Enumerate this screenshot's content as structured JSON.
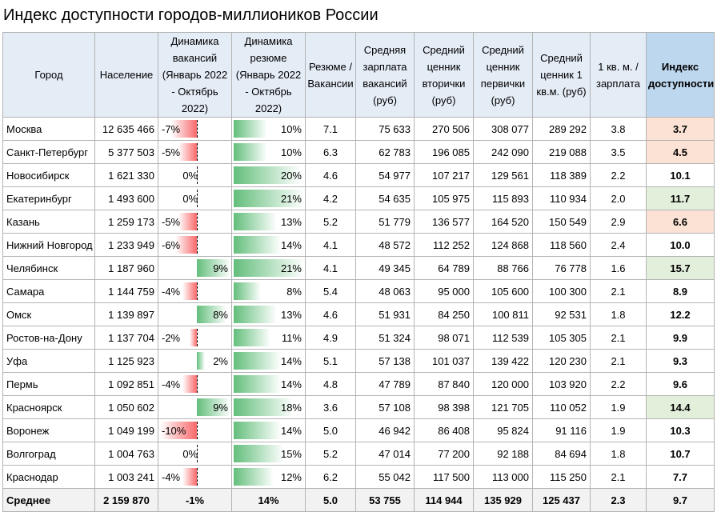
{
  "title": "Индекс доступности городов-миллиоников России",
  "headers": [
    "Город",
    "Население",
    "Динамика вакансий (Январь 2022 - Октябрь 2022)",
    "Динамика резюме (Январь 2022 - Октябрь 2022)",
    "Резюме / Вакансии",
    "Средняя зарплата вакансий (руб)",
    "Средний ценник вторички (руб)",
    "Средний ценник первички (руб)",
    "Средний ценник 1 кв.м. (руб)",
    "1 кв. м. / зарплата",
    "Индекс доступности"
  ],
  "colors": {
    "index_low": "#fbe2d5",
    "index_high": "#e2efda",
    "neg_bar": "#f8696b",
    "pos_bar": "#63be7b"
  },
  "rows": [
    {
      "city": "Москва",
      "population": "12 635 466",
      "vac": -7,
      "vac_text": "-7%",
      "res": 10,
      "res_text": "10%",
      "ratio": "7.1",
      "salary": "75 633",
      "secondary": "270 506",
      "primary": "308 077",
      "sqm": "289 292",
      "sqm_salary": "3.8",
      "index": "3.7",
      "tone": "low"
    },
    {
      "city": "Санкт-Петербург",
      "population": "5 377 503",
      "vac": -5,
      "vac_text": "-5%",
      "res": 10,
      "res_text": "10%",
      "ratio": "6.3",
      "salary": "62 783",
      "secondary": "196 085",
      "primary": "242 090",
      "sqm": "219 088",
      "sqm_salary": "3.5",
      "index": "4.5",
      "tone": "low"
    },
    {
      "city": "Новосибирск",
      "population": "1 621 330",
      "vac": 0,
      "vac_text": "0%",
      "res": 20,
      "res_text": "20%",
      "ratio": "4.6",
      "salary": "54 977",
      "secondary": "107 217",
      "primary": "129 561",
      "sqm": "118 389",
      "sqm_salary": "2.2",
      "index": "10.1",
      "tone": ""
    },
    {
      "city": "Екатеринбург",
      "population": "1 493 600",
      "vac": 0,
      "vac_text": "0%",
      "res": 21,
      "res_text": "21%",
      "ratio": "4.2",
      "salary": "54 635",
      "secondary": "105 975",
      "primary": "115 893",
      "sqm": "110 934",
      "sqm_salary": "2.0",
      "index": "11.7",
      "tone": "high"
    },
    {
      "city": "Казань",
      "population": "1 259 173",
      "vac": -5,
      "vac_text": "-5%",
      "res": 13,
      "res_text": "13%",
      "ratio": "5.2",
      "salary": "51 779",
      "secondary": "136 577",
      "primary": "164 520",
      "sqm": "150 549",
      "sqm_salary": "2.9",
      "index": "6.6",
      "tone": "low"
    },
    {
      "city": "Нижний Новгород",
      "population": "1 233 949",
      "vac": -6,
      "vac_text": "-6%",
      "res": 14,
      "res_text": "14%",
      "ratio": "4.1",
      "salary": "48 572",
      "secondary": "112 252",
      "primary": "124 868",
      "sqm": "118 560",
      "sqm_salary": "2.4",
      "index": "10.0",
      "tone": ""
    },
    {
      "city": "Челябинск",
      "population": "1 187 960",
      "vac": 9,
      "vac_text": "9%",
      "res": 21,
      "res_text": "21%",
      "ratio": "4.1",
      "salary": "49 345",
      "secondary": "64 789",
      "primary": "88 766",
      "sqm": "76 778",
      "sqm_salary": "1.6",
      "index": "15.7",
      "tone": "high"
    },
    {
      "city": "Самара",
      "population": "1 144 759",
      "vac": -4,
      "vac_text": "-4%",
      "res": 8,
      "res_text": "8%",
      "ratio": "5.4",
      "salary": "48 063",
      "secondary": "95 000",
      "primary": "105 600",
      "sqm": "100 300",
      "sqm_salary": "2.1",
      "index": "8.9",
      "tone": ""
    },
    {
      "city": "Омск",
      "population": "1 139 897",
      "vac": 8,
      "vac_text": "8%",
      "res": 13,
      "res_text": "13%",
      "ratio": "4.6",
      "salary": "51 931",
      "secondary": "84 250",
      "primary": "100 811",
      "sqm": "92 531",
      "sqm_salary": "1.8",
      "index": "12.2",
      "tone": ""
    },
    {
      "city": "Ростов-на-Дону",
      "population": "1 137 704",
      "vac": -2,
      "vac_text": "-2%",
      "res": 11,
      "res_text": "11%",
      "ratio": "4.9",
      "salary": "51 324",
      "secondary": "98 071",
      "primary": "112 539",
      "sqm": "105 305",
      "sqm_salary": "2.1",
      "index": "9.9",
      "tone": ""
    },
    {
      "city": "Уфа",
      "population": "1 125 923",
      "vac": 2,
      "vac_text": "2%",
      "res": 14,
      "res_text": "14%",
      "ratio": "5.1",
      "salary": "57 138",
      "secondary": "101 037",
      "primary": "139 422",
      "sqm": "120 230",
      "sqm_salary": "2.1",
      "index": "9.3",
      "tone": ""
    },
    {
      "city": "Пермь",
      "population": "1 092 851",
      "vac": -4,
      "vac_text": "-4%",
      "res": 14,
      "res_text": "14%",
      "ratio": "4.8",
      "salary": "47 789",
      "secondary": "87 840",
      "primary": "120 000",
      "sqm": "103 920",
      "sqm_salary": "2.2",
      "index": "9.6",
      "tone": ""
    },
    {
      "city": "Красноярск",
      "population": "1 050 602",
      "vac": 9,
      "vac_text": "9%",
      "res": 18,
      "res_text": "18%",
      "ratio": "3.6",
      "salary": "57 108",
      "secondary": "98 398",
      "primary": "121 705",
      "sqm": "110 052",
      "sqm_salary": "1.9",
      "index": "14.4",
      "tone": "high"
    },
    {
      "city": "Воронеж",
      "population": "1 049 199",
      "vac": -10,
      "vac_text": "-10%",
      "res": 14,
      "res_text": "14%",
      "ratio": "5.0",
      "salary": "46 942",
      "secondary": "86 408",
      "primary": "95 824",
      "sqm": "91 116",
      "sqm_salary": "1.9",
      "index": "10.3",
      "tone": ""
    },
    {
      "city": "Волгоград",
      "population": "1 004 763",
      "vac": 0,
      "vac_text": "0%",
      "res": 15,
      "res_text": "15%",
      "ratio": "5.2",
      "salary": "47 014",
      "secondary": "77 200",
      "primary": "92 188",
      "sqm": "84 694",
      "sqm_salary": "1.8",
      "index": "10.7",
      "tone": ""
    },
    {
      "city": "Краснодар",
      "population": "1 003 241",
      "vac": -4,
      "vac_text": "-4%",
      "res": 12,
      "res_text": "12%",
      "ratio": "6.2",
      "salary": "55 042",
      "secondary": "117 500",
      "primary": "113 000",
      "sqm": "115 250",
      "sqm_salary": "2.1",
      "index": "7.7",
      "tone": ""
    }
  ],
  "total": {
    "city": "Среднее",
    "population": "2 159 870",
    "vac": "-1%",
    "res": "14%",
    "ratio": "5.0",
    "salary": "53 755",
    "secondary": "114 944",
    "primary": "135 929",
    "sqm": "125 437",
    "sqm_salary": "2.3",
    "index": "9.7"
  }
}
